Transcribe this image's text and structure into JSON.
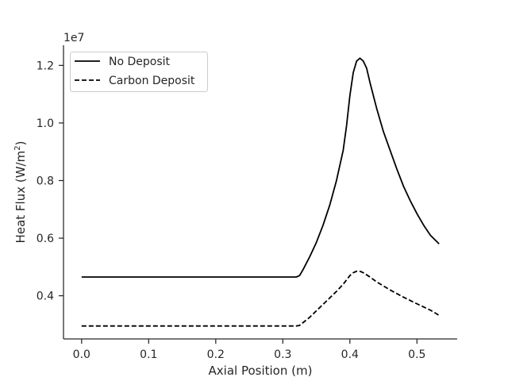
{
  "chart_data": {
    "type": "line",
    "xlabel": "Axial Position (m)",
    "ylabel_main": "Heat Flux (W/m",
    "ylabel_sup": "2",
    "ylabel_close": ")",
    "y_offset_label": "1e7",
    "xlim": [
      -0.027,
      0.56
    ],
    "ylim": [
      2.5,
      12.7
    ],
    "x_ticks": [
      {
        "value": 0.0,
        "label": "0.0"
      },
      {
        "value": 0.1,
        "label": "0.1"
      },
      {
        "value": 0.2,
        "label": "0.2"
      },
      {
        "value": 0.3,
        "label": "0.3"
      },
      {
        "value": 0.4,
        "label": "0.4"
      },
      {
        "value": 0.5,
        "label": "0.5"
      }
    ],
    "y_ticks": [
      {
        "value": 4.0,
        "label": "0.4"
      },
      {
        "value": 6.0,
        "label": "0.6"
      },
      {
        "value": 8.0,
        "label": "0.8"
      },
      {
        "value": 10.0,
        "label": "1.0"
      },
      {
        "value": 12.0,
        "label": "1.2"
      }
    ],
    "grid": false,
    "legend_position": "top-left",
    "series": [
      {
        "name": "No Deposit",
        "color": "#000000",
        "dash": "solid",
        "x": [
          0.0,
          0.1,
          0.2,
          0.3,
          0.32,
          0.325,
          0.33,
          0.34,
          0.35,
          0.36,
          0.37,
          0.38,
          0.39,
          0.395,
          0.4,
          0.405,
          0.41,
          0.415,
          0.42,
          0.425,
          0.43,
          0.44,
          0.45,
          0.46,
          0.47,
          0.48,
          0.49,
          0.5,
          0.51,
          0.52,
          0.533
        ],
        "y": [
          4.65,
          4.65,
          4.65,
          4.65,
          4.65,
          4.7,
          4.9,
          5.35,
          5.85,
          6.45,
          7.15,
          8.0,
          9.05,
          9.9,
          10.95,
          11.75,
          12.15,
          12.25,
          12.15,
          11.9,
          11.4,
          10.5,
          9.7,
          9.05,
          8.4,
          7.8,
          7.3,
          6.85,
          6.45,
          6.1,
          5.8
        ]
      },
      {
        "name": "Carbon Deposit",
        "color": "#000000",
        "dash": "dashed",
        "x": [
          0.0,
          0.1,
          0.2,
          0.3,
          0.32,
          0.325,
          0.34,
          0.36,
          0.38,
          0.39,
          0.4,
          0.405,
          0.41,
          0.415,
          0.42,
          0.43,
          0.44,
          0.46,
          0.48,
          0.5,
          0.52,
          0.533
        ],
        "y": [
          2.95,
          2.95,
          2.95,
          2.95,
          2.95,
          2.97,
          3.25,
          3.7,
          4.15,
          4.4,
          4.7,
          4.8,
          4.85,
          4.85,
          4.8,
          4.65,
          4.48,
          4.2,
          3.95,
          3.72,
          3.5,
          3.32
        ]
      }
    ]
  }
}
